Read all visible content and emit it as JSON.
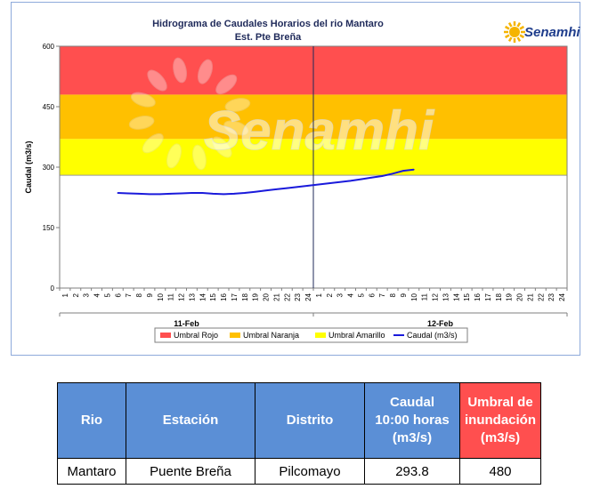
{
  "chart_data": {
    "type": "line",
    "title": "Hidrograma de Caudales Horarios del rio Mantaro",
    "subtitle": "Est. Pte Breña",
    "ylabel": "Caudal  (m3/s)",
    "ylim": [
      0,
      600
    ],
    "yticks": [
      0,
      150,
      300,
      450,
      600
    ],
    "x_tick_labels": [
      "1",
      "2",
      "3",
      "4",
      "5",
      "6",
      "7",
      "8",
      "9",
      "10",
      "11",
      "12",
      "13",
      "14",
      "15",
      "16",
      "17",
      "18",
      "19",
      "20",
      "21",
      "22",
      "23",
      "24",
      "1",
      "2",
      "3",
      "4",
      "5",
      "6",
      "7",
      "8",
      "9",
      "10",
      "11",
      "12",
      "13",
      "14",
      "15",
      "16",
      "17",
      "18",
      "19",
      "20",
      "21",
      "22",
      "23",
      "24"
    ],
    "day_labels": [
      "11-Feb",
      "12-Feb"
    ],
    "thresholds": [
      {
        "name": "Umbral Amarillo",
        "from": 280,
        "to": 370,
        "color": "#ffff00"
      },
      {
        "name": "Umbral Naranja",
        "from": 370,
        "to": 480,
        "color": "#ffc000"
      },
      {
        "name": "Umbral Rojo",
        "from": 480,
        "to": 600,
        "color": "#ff4f4f"
      }
    ],
    "series": [
      {
        "name": "Caudal (m3/s)",
        "color": "#1a1adb",
        "x": [
          6,
          7,
          8,
          9,
          10,
          11,
          12,
          13,
          14,
          15,
          16,
          17,
          18,
          19,
          20,
          21,
          22,
          23,
          24,
          25,
          26,
          27,
          28,
          29,
          30,
          31,
          32,
          33,
          34
        ],
        "values": [
          236,
          235,
          234,
          233,
          233,
          234,
          235,
          236,
          236,
          234,
          233,
          234,
          236,
          239,
          242,
          245,
          248,
          251,
          254,
          257,
          260,
          263,
          266,
          270,
          274,
          278,
          284,
          291,
          294
        ]
      }
    ],
    "legend": [
      "Umbral Rojo",
      "Umbral Naranja",
      "Umbral Amarillo",
      "Caudal (m3/s)"
    ],
    "legend_position": "bottom",
    "grid": false
  },
  "watermark": "Senamhi",
  "logo_text": "Senamhi",
  "colors": {
    "table_header": "#5b8fd6",
    "table_header_alert": "#ff4f4f"
  },
  "table": {
    "headers": [
      "Rio",
      "Estación",
      "Distrito",
      "Caudal 10:00 horas (m3/s)",
      "Umbral de inundación (m3/s)"
    ],
    "header_lines": [
      [
        "Rio"
      ],
      [
        "Estación"
      ],
      [
        "Distrito"
      ],
      [
        "Caudal",
        "10:00 horas",
        "(m3/s)"
      ],
      [
        "Umbral de",
        "inundación",
        "(m3/s)"
      ]
    ],
    "row": [
      "Mantaro",
      "Puente Breña",
      "Pilcomayo",
      "293.8",
      "480"
    ]
  }
}
